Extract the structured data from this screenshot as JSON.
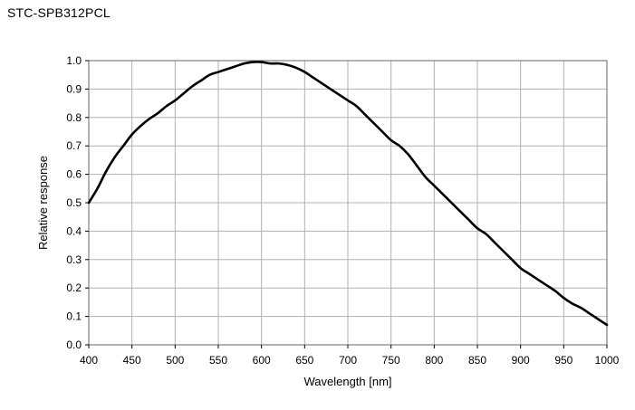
{
  "page": {
    "title": "STC-SPB312PCL"
  },
  "chart_data": {
    "type": "line",
    "title": "STC-SPB312PCL",
    "xlabel": "Wavelength [nm]",
    "ylabel": "Relative response",
    "xlim": [
      400,
      1000
    ],
    "ylim": [
      0,
      1.0
    ],
    "x_ticks": [
      400,
      450,
      500,
      550,
      600,
      650,
      700,
      750,
      800,
      850,
      900,
      950,
      1000
    ],
    "y_ticks": [
      0.0,
      0.1,
      0.2,
      0.3,
      0.4,
      0.5,
      0.6,
      0.7,
      0.8,
      0.9,
      1.0
    ],
    "x_tick_labels": [
      "400",
      "450",
      "500",
      "550",
      "600",
      "650",
      "700",
      "750",
      "800",
      "850",
      "900",
      "950",
      "1000"
    ],
    "y_tick_labels": [
      "0.0",
      "0.1",
      "0.2",
      "0.3",
      "0.4",
      "0.5",
      "0.6",
      "0.7",
      "0.8",
      "0.9",
      "1.0"
    ],
    "grid": true,
    "line_color": "#000000",
    "grid_color": "#b0b0b0",
    "series": [
      {
        "x": [
          400,
          410,
          420,
          430,
          440,
          450,
          460,
          470,
          480,
          490,
          500,
          510,
          520,
          530,
          540,
          550,
          560,
          570,
          580,
          590,
          600,
          610,
          620,
          630,
          640,
          650,
          660,
          670,
          680,
          690,
          700,
          710,
          720,
          730,
          740,
          750,
          760,
          770,
          780,
          790,
          800,
          810,
          820,
          830,
          840,
          850,
          860,
          870,
          880,
          890,
          900,
          910,
          920,
          930,
          940,
          950,
          960,
          970,
          980,
          990,
          1000
        ],
        "values": [
          0.5,
          0.55,
          0.61,
          0.66,
          0.7,
          0.74,
          0.77,
          0.795,
          0.815,
          0.84,
          0.86,
          0.885,
          0.91,
          0.93,
          0.95,
          0.96,
          0.97,
          0.98,
          0.99,
          0.995,
          0.995,
          0.99,
          0.99,
          0.985,
          0.975,
          0.96,
          0.94,
          0.92,
          0.9,
          0.88,
          0.86,
          0.84,
          0.81,
          0.78,
          0.75,
          0.72,
          0.7,
          0.67,
          0.63,
          0.59,
          0.56,
          0.53,
          0.5,
          0.47,
          0.44,
          0.41,
          0.39,
          0.36,
          0.33,
          0.3,
          0.27,
          0.25,
          0.23,
          0.21,
          0.19,
          0.165,
          0.145,
          0.13,
          0.11,
          0.09,
          0.07
        ]
      }
    ]
  }
}
